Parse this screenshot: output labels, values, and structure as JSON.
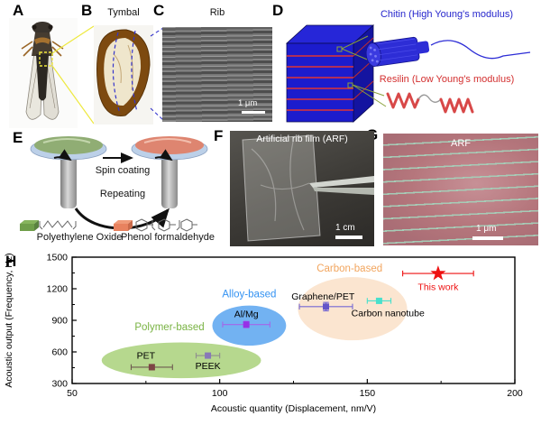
{
  "panels": {
    "a": {
      "label": "A"
    },
    "b": {
      "label": "B",
      "title": "Tymbal"
    },
    "c": {
      "label": "C",
      "title": "Rib",
      "scale_bar": "1 μm"
    },
    "d": {
      "label": "D",
      "chitin_label": "Chitin (High Young's modulus)",
      "resilin_label": "Resilin (Low Young's modulus)",
      "chitin_color": "#2525cc",
      "resilin_color": "#d32f2f",
      "cube_color": "#1c1ccd",
      "layer_line_color": "#e03535"
    },
    "e": {
      "label": "E",
      "step1": "Spin coating",
      "step2": "Repeating",
      "material1": "Polyethylene Oxide",
      "material2": "Phenol formaldehyde",
      "material1_color": "#6f9e4a",
      "material2_color": "#e8825f"
    },
    "f": {
      "label": "F",
      "title": "Artificial rib film (ARF)",
      "scale_bar": "1 cm"
    },
    "g": {
      "label": "G",
      "title": "ARF",
      "scale_bar": "1 μm"
    },
    "h": {
      "label": "H"
    }
  },
  "chart_data": {
    "type": "scatter",
    "title": "",
    "xlabel": "Acoustic quantity (Displacement, nm/V)",
    "ylabel": "Acoustic output (Frequency, Hz)",
    "xlim": [
      50,
      200
    ],
    "ylim": [
      300,
      1500
    ],
    "xticks": [
      50,
      100,
      150,
      200
    ],
    "xticks_minor": [
      75,
      125,
      175
    ],
    "yticks": [
      300,
      600,
      900,
      1200,
      1500
    ],
    "yticks_minor": [
      450,
      750,
      1050,
      1350
    ],
    "grid": false,
    "legend": "none",
    "groups": [
      {
        "name": "Polymer-based",
        "label_color": "#79b343",
        "fill": "#b6d88e",
        "label_x": 83,
        "label_y": 805,
        "ellipse": {
          "cx": 87,
          "cy": 520,
          "rx": 27,
          "ry": 170
        }
      },
      {
        "name": "Alloy-based",
        "label_color": "#3392f2",
        "fill": "#72b2f2",
        "label_x": 110,
        "label_y": 1120,
        "ellipse": {
          "cx": 110,
          "cy": 850,
          "rx": 12.5,
          "ry": 190
        }
      },
      {
        "name": "Carbon-based",
        "label_color": "#f2a55e",
        "fill": "#fbe5d0",
        "label_x": 144,
        "label_y": 1365,
        "ellipse": {
          "cx": 145,
          "cy": 1010,
          "rx": 18.5,
          "ry": 300
        }
      }
    ],
    "points": [
      {
        "name": "PET",
        "x": 77,
        "y": 455,
        "xerr": 7,
        "yerr": 25,
        "color": "#7d4545",
        "err_color": "#6e5a50",
        "marker": "square",
        "label_x": 75,
        "label_y": 560,
        "label_color": "#000000"
      },
      {
        "name": "PEEK",
        "x": 96,
        "y": 565,
        "xerr": 4,
        "yerr": 12,
        "color": "#8878b8",
        "err_color": "#8f8f8f",
        "marker": "square",
        "label_x": 96,
        "label_y": 462,
        "label_color": "#000000"
      },
      {
        "name": "Al/Mg",
        "x": 109,
        "y": 860,
        "xerr": 8,
        "yerr": 30,
        "color": "#9632e6",
        "err_color": "#a465e8",
        "marker": "square",
        "label_x": 109,
        "label_y": 955,
        "label_color": "#000000"
      },
      {
        "name": "Graphene/PET",
        "x": 136,
        "y": 1030,
        "xerr": 9,
        "yerr": 40,
        "color": "#6456c8",
        "err_color": "#7468d4",
        "marker": "square",
        "label_x": 135,
        "label_y": 1125,
        "label_color": "#000000"
      },
      {
        "name": "Carbon nanotube",
        "x": 154,
        "y": 1085,
        "xerr": 4,
        "yerr": 0,
        "color": "#48e0cc",
        "err_color": "#48e0cc",
        "marker": "square",
        "label_x": 157,
        "label_y": 965,
        "label_color": "#000000"
      },
      {
        "name": "This work",
        "x": 174,
        "y": 1345,
        "xerr": 12,
        "yerr": 0,
        "color": "#ee1111",
        "err_color": "#ee1111",
        "marker": "star",
        "label_x": 174,
        "label_y": 1215,
        "label_color": "#ee1111"
      }
    ]
  }
}
